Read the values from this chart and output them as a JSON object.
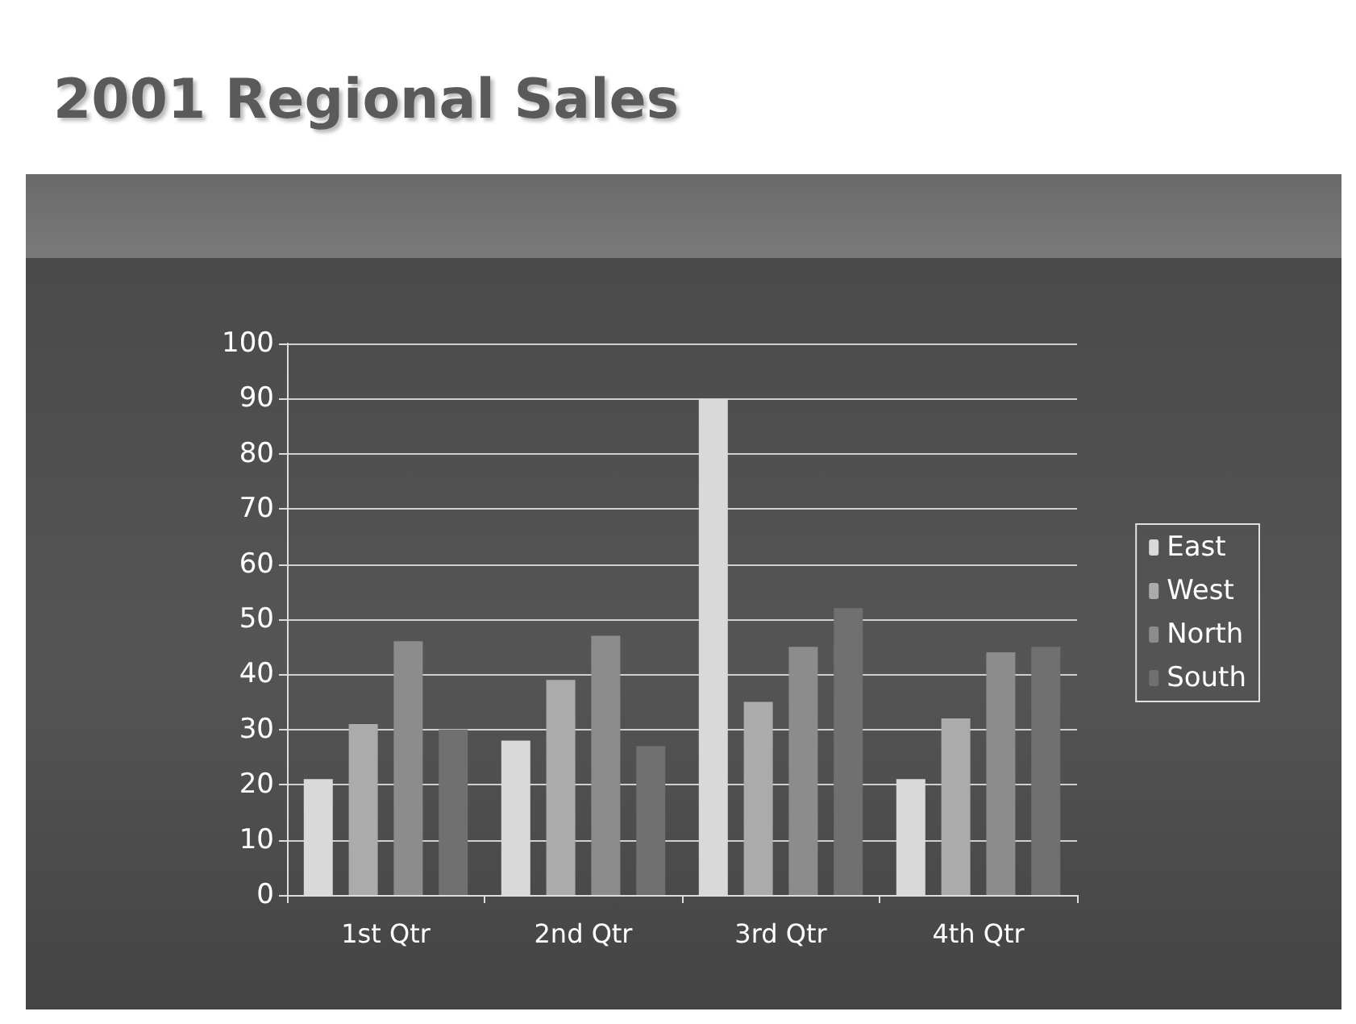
{
  "chart_data": {
    "type": "bar",
    "title": "2001 Regional Sales",
    "categories": [
      "1st Qtr",
      "2nd Qtr",
      "3rd Qtr",
      "4th Qtr"
    ],
    "series": [
      {
        "name": "East",
        "color": "#d9d9d9",
        "values": [
          21,
          28,
          90,
          21
        ]
      },
      {
        "name": "West",
        "color": "#ababab",
        "values": [
          31,
          39,
          35,
          32
        ]
      },
      {
        "name": "North",
        "color": "#8c8c8c",
        "values": [
          46,
          47,
          45,
          44
        ]
      },
      {
        "name": "South",
        "color": "#707070",
        "values": [
          30,
          27,
          52,
          45
        ]
      }
    ],
    "ylim": [
      0,
      100
    ],
    "yticks": [
      0,
      10,
      20,
      30,
      40,
      50,
      60,
      70,
      80,
      90,
      100
    ],
    "grid": "y",
    "legend": "right"
  }
}
